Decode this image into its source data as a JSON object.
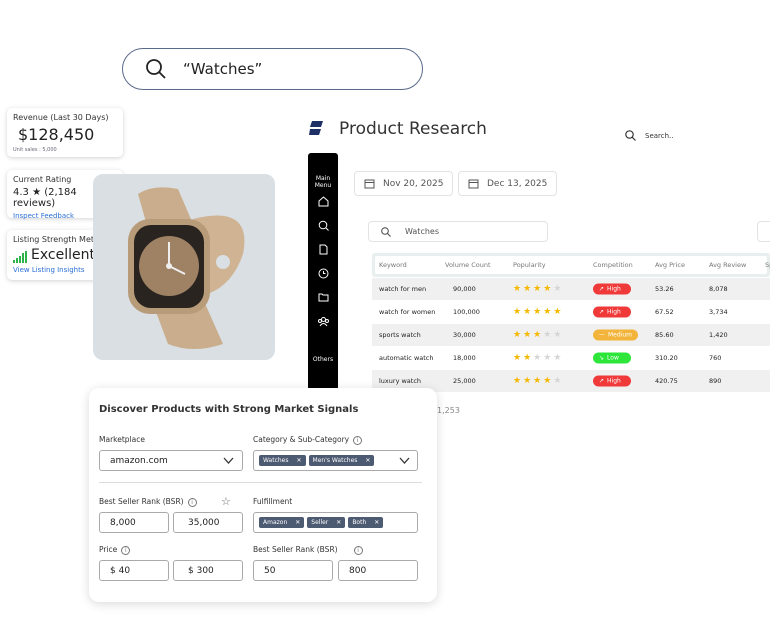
{
  "top_search": {
    "query": "“Watches”"
  },
  "cards": {
    "revenue": {
      "title": "Revenue (Last 30 Days)",
      "value": "$128,450",
      "sub": "Unit sales : 5,000"
    },
    "rating": {
      "title": "Current Rating",
      "value": "4.3 ★ (2,184 reviews)",
      "link": "Inspect Feedback"
    },
    "listing": {
      "title": "Listing Strength Meter",
      "value": "Excellent",
      "link": "View Listing Insights"
    }
  },
  "app": {
    "title": "Product Research",
    "search_placeholder": "Search..",
    "brand_color": "#1e2f66"
  },
  "sidebar": {
    "header": "Main Menu",
    "footer": "Others",
    "icons": [
      "home-icon",
      "search-zoom-icon",
      "document-icon",
      "clock-icon",
      "folder-icon",
      "users-icon"
    ]
  },
  "dates": {
    "start": "Nov 20, 2025",
    "end": "Dec 13, 2025"
  },
  "keyword_search": {
    "value": "Watches"
  },
  "table": {
    "headers": [
      "Keyword",
      "Volume Count",
      "Popularity",
      "Competition",
      "Avg Price",
      "Avg Review",
      "Sp"
    ],
    "rows": [
      {
        "keyword": "watch for men",
        "volume": "90,000",
        "stars": 4,
        "competition": "High",
        "price": "53.26",
        "review": "8,078"
      },
      {
        "keyword": "watch for women",
        "volume": "100,000",
        "stars": 5,
        "competition": "High",
        "price": "67.52",
        "review": "3,734"
      },
      {
        "keyword": "sports watch",
        "volume": "30,000",
        "stars": 3,
        "competition": "Medium",
        "price": "85.60",
        "review": "1,420"
      },
      {
        "keyword": "automatic watch",
        "volume": "18,000",
        "stars": 2,
        "competition": "Low",
        "price": "310.20",
        "review": "760"
      },
      {
        "keyword": "luxury watch",
        "volume": "25,000",
        "stars": 4,
        "competition": "High",
        "price": "420.75",
        "review": "890"
      }
    ],
    "footer_value": "1,253",
    "colors": {
      "High": "#f03a3a",
      "Medium": "#f2b43a",
      "Low": "#2ee63a",
      "star": "#f5b800",
      "star_off": "#d6d6d6"
    }
  },
  "panel": {
    "title": "Discover  Products with Strong Market Signals",
    "marketplace_label": "Marketplace",
    "marketplace_value": "amazon.com",
    "category_label": "Category & Sub-Category",
    "category_tags": [
      "Watches",
      "Men's Watches"
    ],
    "bsr_label": "Best Seller Rank (BSR)",
    "bsr_min": "8,000",
    "bsr_max": "35,000",
    "fulfillment_label": "Fulfillment",
    "fulfillment_tags": [
      "Amazon",
      "Seller",
      "Both"
    ],
    "price_label": "Price",
    "price_min": "$ 40",
    "price_max": "$ 300",
    "bsr2_label": "Best Seller Rank (BSR)",
    "bsr2_min": "50",
    "bsr2_max": "800"
  }
}
